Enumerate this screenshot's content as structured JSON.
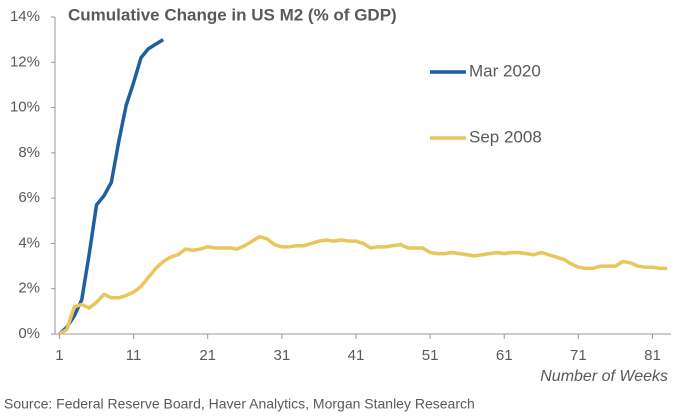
{
  "chart_data": {
    "type": "line",
    "title": "Cumulative Change in US M2 (% of GDP)",
    "x_label": "Number of Weeks",
    "source": "Source: Federal Reserve Board, Haver Analytics, Morgan Stanley Research",
    "x": [
      1,
      2,
      3,
      4,
      5,
      6,
      7,
      8,
      9,
      10,
      11,
      12,
      13,
      14,
      15,
      16,
      17,
      18,
      19,
      20,
      21,
      22,
      23,
      24,
      25,
      26,
      27,
      28,
      29,
      30,
      31,
      32,
      33,
      34,
      35,
      36,
      37,
      38,
      39,
      40,
      41,
      42,
      43,
      44,
      45,
      46,
      47,
      48,
      49,
      50,
      51,
      52,
      53,
      54,
      55,
      56,
      57,
      58,
      59,
      60,
      61,
      62,
      63,
      64,
      65,
      66,
      67,
      68,
      69,
      70,
      71,
      72,
      73,
      74,
      75,
      76,
      77,
      78,
      79,
      80,
      81,
      82,
      83
    ],
    "series": [
      {
        "name": "Mar 2020",
        "color": "#1f5fa0",
        "values": [
          0,
          0.3,
          0.8,
          1.5,
          3.5,
          5.7,
          6.1,
          6.7,
          8.5,
          10.1,
          11.1,
          12.2,
          12.6,
          12.8,
          13.0,
          null,
          null,
          null,
          null,
          null,
          null,
          null,
          null,
          null,
          null,
          null,
          null,
          null,
          null,
          null,
          null,
          null,
          null,
          null,
          null,
          null,
          null,
          null,
          null,
          null,
          null,
          null,
          null,
          null,
          null,
          null,
          null,
          null,
          null,
          null,
          null,
          null,
          null,
          null,
          null,
          null,
          null,
          null,
          null,
          null,
          null,
          null,
          null,
          null,
          null,
          null,
          null,
          null,
          null,
          null,
          null,
          null,
          null,
          null,
          null,
          null,
          null,
          null,
          null,
          null,
          null,
          null,
          null
        ]
      },
      {
        "name": "Sep 2008",
        "color": "#e8c65a",
        "values": [
          0,
          0.2,
          1.2,
          1.3,
          1.15,
          1.4,
          1.75,
          1.6,
          1.6,
          1.7,
          1.85,
          2.1,
          2.5,
          2.9,
          3.2,
          3.4,
          3.5,
          3.75,
          3.7,
          3.75,
          3.85,
          3.8,
          3.8,
          3.8,
          3.75,
          3.9,
          4.1,
          4.3,
          4.2,
          3.95,
          3.85,
          3.85,
          3.9,
          3.9,
          4.0,
          4.1,
          4.15,
          4.1,
          4.15,
          4.1,
          4.1,
          4.0,
          3.8,
          3.85,
          3.85,
          3.9,
          3.95,
          3.8,
          3.8,
          3.8,
          3.6,
          3.55,
          3.55,
          3.6,
          3.55,
          3.5,
          3.45,
          3.5,
          3.55,
          3.6,
          3.55,
          3.6,
          3.6,
          3.55,
          3.5,
          3.6,
          3.5,
          3.4,
          3.3,
          3.1,
          2.95,
          2.9,
          2.9,
          3.0,
          3.0,
          3.0,
          3.2,
          3.15,
          3.0,
          2.95,
          2.95,
          2.9,
          2.9
        ]
      }
    ],
    "xlim": [
      0.4,
      83.5
    ],
    "xticks": [
      1,
      11,
      21,
      31,
      41,
      51,
      61,
      71,
      81
    ],
    "ylim": [
      0,
      14
    ],
    "yticks": [
      {
        "value": 0,
        "label": "0%"
      },
      {
        "value": 2,
        "label": "2%"
      },
      {
        "value": 4,
        "label": "4%"
      },
      {
        "value": 6,
        "label": "6%"
      },
      {
        "value": 8,
        "label": "8%"
      },
      {
        "value": 10,
        "label": "10%"
      },
      {
        "value": 12,
        "label": "12%"
      },
      {
        "value": 14,
        "label": "14%"
      }
    ]
  }
}
